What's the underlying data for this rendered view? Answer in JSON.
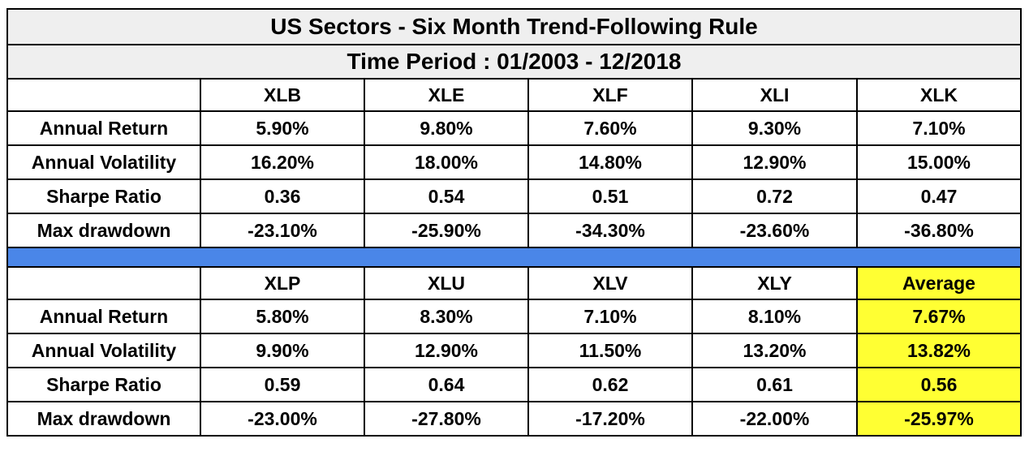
{
  "title": "US Sectors - Six Month Trend-Following Rule",
  "period": "Time Period : 01/2003 - 12/2018",
  "row_labels": [
    "Annual Return",
    "Annual Volatility",
    "Sharpe Ratio",
    "Max drawdown"
  ],
  "block1": {
    "columns": [
      "XLB",
      "XLE",
      "XLF",
      "XLI",
      "XLK"
    ],
    "rows": [
      [
        "5.90%",
        "9.80%",
        "7.60%",
        "9.30%",
        "7.10%"
      ],
      [
        "16.20%",
        "18.00%",
        "14.80%",
        "12.90%",
        "15.00%"
      ],
      [
        "0.36",
        "0.54",
        "0.51",
        "0.72",
        "0.47"
      ],
      [
        "-23.10%",
        "-25.90%",
        "-34.30%",
        "-23.60%",
        "-36.80%"
      ]
    ]
  },
  "block2": {
    "columns": [
      "XLP",
      "XLU",
      "XLV",
      "XLY",
      "Average"
    ],
    "rows": [
      [
        "5.80%",
        "8.30%",
        "7.10%",
        "8.10%",
        "7.67%"
      ],
      [
        "9.90%",
        "12.90%",
        "11.50%",
        "13.20%",
        "13.82%"
      ],
      [
        "0.59",
        "0.64",
        "0.62",
        "0.61",
        "0.56"
      ],
      [
        "-23.00%",
        "-27.80%",
        "-17.20%",
        "-22.00%",
        "-25.97%"
      ]
    ]
  },
  "colors": {
    "header_bg": "#efefef",
    "separator": "#4a86e8",
    "average_highlight": "#ffff33"
  }
}
